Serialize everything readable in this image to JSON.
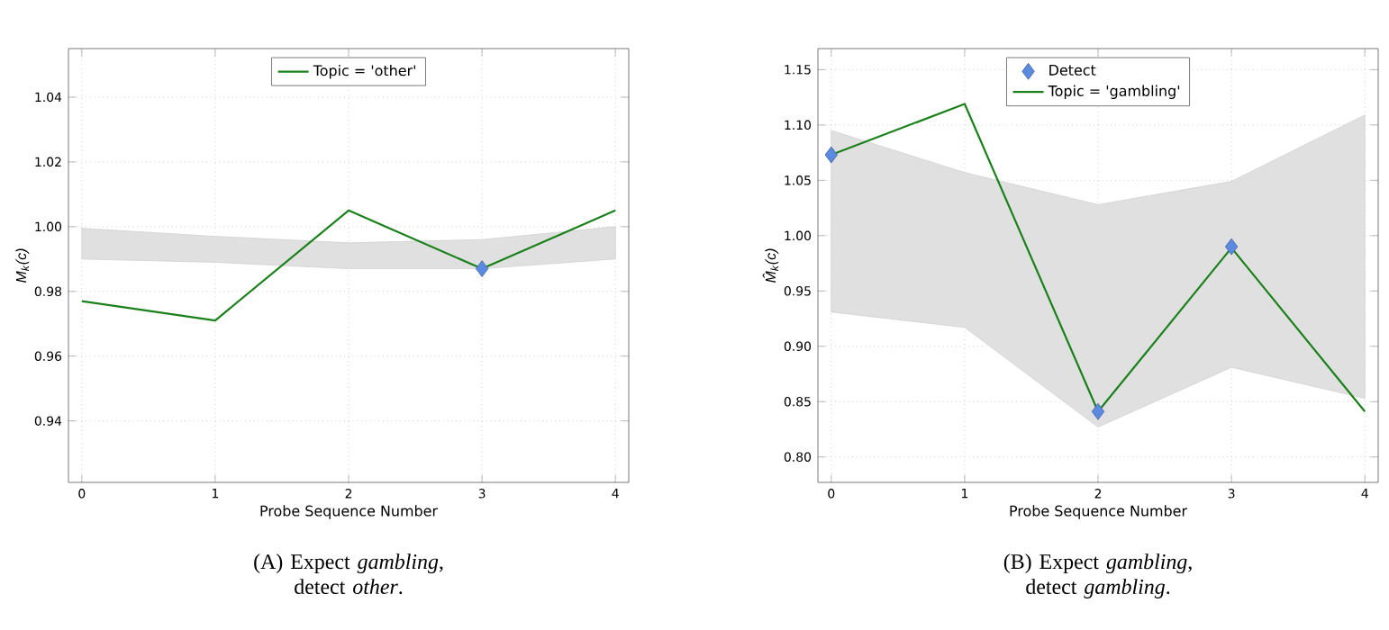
{
  "chart_data": [
    {
      "type": "line",
      "xlabel": "Probe Sequence Number",
      "ylabel": "M$_{k}$(c)",
      "legend": "top",
      "grid": true,
      "xlim": [
        -0.1,
        4.1
      ],
      "xticks": [
        0,
        1,
        2,
        3,
        4
      ],
      "ylim": [
        0.921,
        1.055
      ],
      "yticks": [
        0.94,
        0.96,
        0.98,
        {
          "value": 1.0,
          "label": "1.00"
        },
        1.02,
        1.04
      ],
      "annotations": [
        "(A) Expect *gambling*, detect *other*."
      ],
      "series": [
        {
          "type": "scatter",
          "marker": "diamond",
          "color": "#5b8be0",
          "x": [
            3
          ],
          "values": [
            0.987
          ]
        },
        {
          "name": "Topic = 'other'",
          "color": "#1a801a",
          "x": [
            0,
            1,
            2,
            3,
            4
          ],
          "values": [
            0.977,
            0.971,
            1.005,
            0.987,
            1.005
          ],
          "lower": [
            0.99,
            0.989,
            0.987,
            0.987,
            0.99
          ],
          "upper": [
            0.9995,
            0.997,
            0.995,
            0.996,
            1.0
          ]
        }
      ]
    },
    {
      "type": "line",
      "xlabel": "Probe Sequence Number",
      "ylabel": "M̂$_{k}$(c)",
      "legend": "top",
      "grid": true,
      "xlim": [
        -0.1,
        4.1
      ],
      "xticks": [
        0,
        1,
        2,
        3,
        4
      ],
      "ylim": [
        0.777,
        1.169
      ],
      "yticks": [
        {
          "value": 0.8,
          "label": "0.80"
        },
        0.85,
        {
          "value": 0.9,
          "label": "0.90"
        },
        0.95,
        {
          "value": 1.0,
          "label": "1.00"
        },
        1.05,
        {
          "value": 1.1,
          "label": "1.10"
        },
        1.15
      ],
      "annotations": [
        "(B) Expect *gambling*, detect *gambling*."
      ],
      "series": [
        {
          "name": "Detect",
          "type": "scatter",
          "marker": "diamond",
          "color": "#5b8be0",
          "x": [
            0,
            2,
            3
          ],
          "values": [
            1.073,
            0.841,
            0.99
          ]
        },
        {
          "name": "Topic = 'gambling'",
          "color": "#1a801a",
          "x": [
            0,
            1,
            2,
            3,
            4
          ],
          "values": [
            1.073,
            1.119,
            0.841,
            0.989,
            0.841
          ],
          "lower": [
            0.931,
            0.917,
            0.827,
            0.881,
            0.853
          ],
          "upper": [
            1.095,
            1.057,
            1.028,
            1.049,
            1.109
          ]
        }
      ]
    }
  ]
}
